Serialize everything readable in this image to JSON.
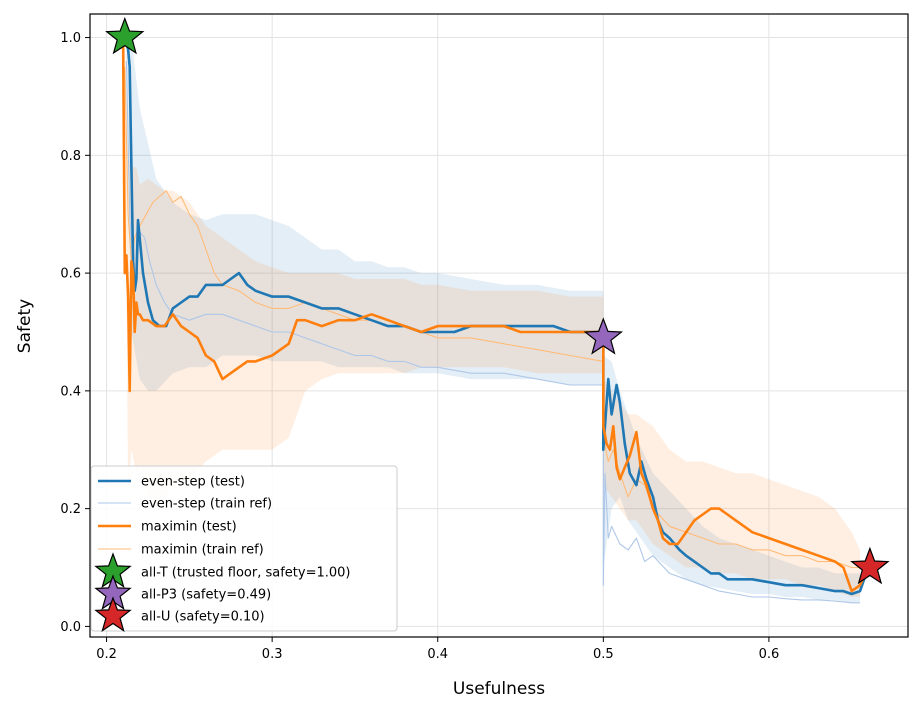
{
  "chart_data": {
    "type": "line",
    "title": "",
    "xlabel": "Usefulness",
    "ylabel": "Safety",
    "xlim": [
      0.19,
      0.684
    ],
    "ylim": [
      -0.018,
      1.04
    ],
    "xticks": [
      0.2,
      0.3,
      0.4,
      0.5,
      0.6
    ],
    "xtick_labels": [
      "0.2",
      "0.3",
      "0.4",
      "0.5",
      "0.6"
    ],
    "yticks": [
      0.0,
      0.2,
      0.4,
      0.6,
      0.8,
      1.0
    ],
    "ytick_labels": [
      "0.0",
      "0.2",
      "0.4",
      "0.6",
      "0.8",
      "1.0"
    ],
    "grid": true,
    "legend": "lower-left",
    "series": [
      {
        "name": "even-step (test)",
        "color": "#1f77b4",
        "style": "thick",
        "x": [
          0.211,
          0.213,
          0.214,
          0.215,
          0.216,
          0.217,
          0.218,
          0.219,
          0.22,
          0.222,
          0.225,
          0.228,
          0.232,
          0.236,
          0.24,
          0.245,
          0.25,
          0.255,
          0.26,
          0.265,
          0.27,
          0.275,
          0.28,
          0.285,
          0.29,
          0.3,
          0.31,
          0.32,
          0.33,
          0.34,
          0.35,
          0.36,
          0.37,
          0.38,
          0.39,
          0.4,
          0.41,
          0.42,
          0.43,
          0.44,
          0.45,
          0.46,
          0.47,
          0.48,
          0.49,
          0.5,
          0.5,
          0.503,
          0.505,
          0.508,
          0.51,
          0.513,
          0.516,
          0.52,
          0.523,
          0.526,
          0.53,
          0.533,
          0.536,
          0.54,
          0.543,
          0.546,
          0.55,
          0.555,
          0.56,
          0.565,
          0.57,
          0.575,
          0.58,
          0.59,
          0.6,
          0.61,
          0.62,
          0.63,
          0.64,
          0.645,
          0.65,
          0.655,
          0.66
        ],
        "y": [
          1.0,
          0.98,
          0.95,
          0.78,
          0.62,
          0.57,
          0.59,
          0.69,
          0.66,
          0.6,
          0.55,
          0.52,
          0.51,
          0.51,
          0.54,
          0.55,
          0.56,
          0.56,
          0.58,
          0.58,
          0.58,
          0.59,
          0.6,
          0.58,
          0.57,
          0.56,
          0.56,
          0.55,
          0.54,
          0.54,
          0.53,
          0.52,
          0.51,
          0.51,
          0.5,
          0.5,
          0.5,
          0.51,
          0.51,
          0.51,
          0.51,
          0.51,
          0.51,
          0.5,
          0.5,
          0.5,
          0.3,
          0.42,
          0.36,
          0.41,
          0.38,
          0.31,
          0.26,
          0.24,
          0.28,
          0.25,
          0.22,
          0.18,
          0.16,
          0.15,
          0.14,
          0.13,
          0.12,
          0.11,
          0.1,
          0.09,
          0.09,
          0.08,
          0.08,
          0.08,
          0.075,
          0.07,
          0.07,
          0.065,
          0.06,
          0.06,
          0.055,
          0.06,
          0.1
        ]
      },
      {
        "name": "even-step (train ref)",
        "color": "#aec7e8",
        "style": "thin",
        "x": [
          0.212,
          0.214,
          0.216,
          0.218,
          0.22,
          0.223,
          0.226,
          0.23,
          0.235,
          0.24,
          0.25,
          0.26,
          0.27,
          0.28,
          0.29,
          0.3,
          0.31,
          0.32,
          0.33,
          0.34,
          0.35,
          0.36,
          0.37,
          0.38,
          0.39,
          0.4,
          0.42,
          0.44,
          0.46,
          0.48,
          0.5,
          0.5,
          0.501,
          0.503,
          0.505,
          0.51,
          0.515,
          0.52,
          0.525,
          0.53,
          0.54,
          0.55,
          0.56,
          0.57,
          0.58,
          0.59,
          0.6,
          0.61,
          0.62,
          0.63,
          0.64,
          0.65,
          0.655
        ],
        "y": [
          0.96,
          0.7,
          0.6,
          0.6,
          0.67,
          0.66,
          0.62,
          0.58,
          0.55,
          0.53,
          0.52,
          0.53,
          0.53,
          0.52,
          0.51,
          0.5,
          0.5,
          0.49,
          0.48,
          0.47,
          0.46,
          0.46,
          0.45,
          0.45,
          0.44,
          0.44,
          0.43,
          0.43,
          0.42,
          0.41,
          0.41,
          0.07,
          0.26,
          0.15,
          0.17,
          0.14,
          0.13,
          0.15,
          0.11,
          0.12,
          0.09,
          0.08,
          0.07,
          0.06,
          0.055,
          0.05,
          0.05,
          0.047,
          0.045,
          0.045,
          0.043,
          0.04,
          0.04
        ]
      },
      {
        "name": "maximin (test)",
        "color": "#ff7f0e",
        "style": "thick",
        "x": [
          0.21,
          0.211,
          0.212,
          0.213,
          0.214,
          0.215,
          0.216,
          0.217,
          0.218,
          0.219,
          0.22,
          0.222,
          0.225,
          0.23,
          0.235,
          0.24,
          0.245,
          0.25,
          0.255,
          0.26,
          0.265,
          0.27,
          0.275,
          0.28,
          0.285,
          0.29,
          0.3,
          0.31,
          0.315,
          0.32,
          0.33,
          0.34,
          0.35,
          0.36,
          0.37,
          0.38,
          0.39,
          0.4,
          0.41,
          0.42,
          0.43,
          0.44,
          0.45,
          0.46,
          0.47,
          0.48,
          0.49,
          0.5,
          0.5,
          0.502,
          0.504,
          0.506,
          0.508,
          0.51,
          0.513,
          0.516,
          0.52,
          0.523,
          0.526,
          0.53,
          0.533,
          0.536,
          0.54,
          0.545,
          0.55,
          0.555,
          0.56,
          0.565,
          0.57,
          0.575,
          0.58,
          0.585,
          0.59,
          0.6,
          0.61,
          0.62,
          0.63,
          0.64,
          0.645,
          0.65,
          0.655,
          0.66
        ],
        "y": [
          1.0,
          0.6,
          0.63,
          0.56,
          0.4,
          0.62,
          0.6,
          0.5,
          0.55,
          0.53,
          0.53,
          0.52,
          0.52,
          0.51,
          0.51,
          0.53,
          0.51,
          0.5,
          0.49,
          0.46,
          0.45,
          0.42,
          0.43,
          0.44,
          0.45,
          0.45,
          0.46,
          0.48,
          0.52,
          0.52,
          0.51,
          0.52,
          0.52,
          0.53,
          0.52,
          0.51,
          0.5,
          0.51,
          0.51,
          0.51,
          0.51,
          0.51,
          0.5,
          0.5,
          0.5,
          0.5,
          0.5,
          0.5,
          0.34,
          0.31,
          0.3,
          0.34,
          0.27,
          0.25,
          0.27,
          0.29,
          0.33,
          0.26,
          0.24,
          0.2,
          0.18,
          0.15,
          0.14,
          0.14,
          0.16,
          0.18,
          0.19,
          0.2,
          0.2,
          0.19,
          0.18,
          0.17,
          0.16,
          0.15,
          0.14,
          0.13,
          0.12,
          0.11,
          0.1,
          0.06,
          0.07,
          0.1
        ]
      },
      {
        "name": "maximin (train ref)",
        "color": "#ffbb78",
        "style": "thin",
        "x": [
          0.211,
          0.213,
          0.215,
          0.217,
          0.22,
          0.224,
          0.228,
          0.232,
          0.236,
          0.24,
          0.245,
          0.25,
          0.255,
          0.26,
          0.265,
          0.27,
          0.28,
          0.29,
          0.3,
          0.31,
          0.32,
          0.33,
          0.34,
          0.35,
          0.36,
          0.37,
          0.38,
          0.39,
          0.4,
          0.42,
          0.44,
          0.46,
          0.48,
          0.5,
          0.5,
          0.503,
          0.506,
          0.51,
          0.515,
          0.52,
          0.525,
          0.53,
          0.54,
          0.55,
          0.56,
          0.57,
          0.58,
          0.59,
          0.6,
          0.61,
          0.62,
          0.63,
          0.64,
          0.65,
          0.655
        ],
        "y": [
          0.95,
          0.7,
          0.62,
          0.66,
          0.68,
          0.7,
          0.72,
          0.73,
          0.74,
          0.72,
          0.73,
          0.7,
          0.68,
          0.64,
          0.6,
          0.58,
          0.57,
          0.55,
          0.54,
          0.54,
          0.55,
          0.54,
          0.53,
          0.52,
          0.52,
          0.51,
          0.51,
          0.5,
          0.49,
          0.49,
          0.48,
          0.47,
          0.46,
          0.45,
          0.32,
          0.28,
          0.3,
          0.26,
          0.22,
          0.25,
          0.24,
          0.2,
          0.17,
          0.16,
          0.15,
          0.14,
          0.14,
          0.13,
          0.13,
          0.12,
          0.12,
          0.11,
          0.11,
          0.1,
          0.1
        ]
      }
    ],
    "bands": [
      {
        "series": "even-step (test)",
        "color": "#1f77b4",
        "x": [
          0.212,
          0.215,
          0.22,
          0.225,
          0.23,
          0.24,
          0.25,
          0.26,
          0.27,
          0.28,
          0.29,
          0.3,
          0.31,
          0.32,
          0.33,
          0.34,
          0.35,
          0.36,
          0.37,
          0.38,
          0.39,
          0.4,
          0.42,
          0.44,
          0.46,
          0.48,
          0.5,
          0.5,
          0.505,
          0.51,
          0.515,
          0.52,
          0.53,
          0.54,
          0.55,
          0.56,
          0.57,
          0.58,
          0.59,
          0.6,
          0.61,
          0.62,
          0.63,
          0.64,
          0.65,
          0.655
        ],
        "lower": [
          0.94,
          0.5,
          0.42,
          0.4,
          0.4,
          0.43,
          0.44,
          0.44,
          0.46,
          0.46,
          0.46,
          0.45,
          0.45,
          0.45,
          0.45,
          0.44,
          0.44,
          0.44,
          0.44,
          0.43,
          0.43,
          0.43,
          0.42,
          0.42,
          0.42,
          0.41,
          0.41,
          0.1,
          0.2,
          0.22,
          0.18,
          0.16,
          0.12,
          0.1,
          0.08,
          0.07,
          0.065,
          0.06,
          0.055,
          0.055,
          0.05,
          0.05,
          0.045,
          0.045,
          0.04,
          0.04
        ],
        "upper": [
          1.0,
          1.0,
          0.88,
          0.82,
          0.76,
          0.72,
          0.7,
          0.69,
          0.7,
          0.7,
          0.7,
          0.69,
          0.68,
          0.66,
          0.64,
          0.64,
          0.62,
          0.62,
          0.61,
          0.61,
          0.6,
          0.6,
          0.59,
          0.58,
          0.58,
          0.57,
          0.57,
          0.46,
          0.45,
          0.4,
          0.36,
          0.32,
          0.26,
          0.23,
          0.2,
          0.17,
          0.15,
          0.14,
          0.13,
          0.12,
          0.11,
          0.1,
          0.1,
          0.09,
          0.09,
          0.09
        ]
      },
      {
        "series": "maximin (test)",
        "color": "#ff7f0e",
        "x": [
          0.211,
          0.213,
          0.215,
          0.218,
          0.22,
          0.225,
          0.23,
          0.235,
          0.24,
          0.25,
          0.26,
          0.27,
          0.28,
          0.29,
          0.3,
          0.31,
          0.32,
          0.33,
          0.34,
          0.35,
          0.36,
          0.37,
          0.38,
          0.39,
          0.4,
          0.42,
          0.44,
          0.46,
          0.48,
          0.5,
          0.5,
          0.505,
          0.51,
          0.515,
          0.52,
          0.53,
          0.54,
          0.55,
          0.56,
          0.57,
          0.58,
          0.59,
          0.6,
          0.61,
          0.62,
          0.63,
          0.64,
          0.65,
          0.655
        ],
        "lower": [
          0.94,
          0.22,
          0.3,
          0.26,
          0.27,
          0.22,
          0.2,
          0.22,
          0.24,
          0.25,
          0.28,
          0.3,
          0.3,
          0.3,
          0.3,
          0.32,
          0.4,
          0.42,
          0.43,
          0.43,
          0.43,
          0.43,
          0.43,
          0.44,
          0.44,
          0.44,
          0.44,
          0.43,
          0.43,
          0.43,
          0.24,
          0.22,
          0.2,
          0.18,
          0.18,
          0.14,
          0.12,
          0.1,
          0.1,
          0.09,
          0.09,
          0.08,
          0.08,
          0.08,
          0.07,
          0.07,
          0.06,
          0.05,
          0.05
        ],
        "upper": [
          1.0,
          0.8,
          0.78,
          0.78,
          0.75,
          0.76,
          0.75,
          0.74,
          0.74,
          0.72,
          0.68,
          0.66,
          0.64,
          0.62,
          0.61,
          0.6,
          0.6,
          0.6,
          0.6,
          0.59,
          0.59,
          0.59,
          0.59,
          0.58,
          0.58,
          0.57,
          0.57,
          0.57,
          0.56,
          0.56,
          0.42,
          0.4,
          0.38,
          0.36,
          0.36,
          0.34,
          0.3,
          0.28,
          0.28,
          0.27,
          0.26,
          0.26,
          0.25,
          0.24,
          0.23,
          0.22,
          0.2,
          0.16,
          0.13
        ]
      }
    ],
    "markers": [
      {
        "name": "all-T (trusted floor, safety=1.00)",
        "x": 0.211,
        "y": 1.0,
        "color": "#2ca02c"
      },
      {
        "name": "all-P3 (safety=0.49)",
        "x": 0.5,
        "y": 0.49,
        "color": "#9467bd"
      },
      {
        "name": "all-U (safety=0.10)",
        "x": 0.661,
        "y": 0.1,
        "color": "#d62728"
      }
    ]
  }
}
